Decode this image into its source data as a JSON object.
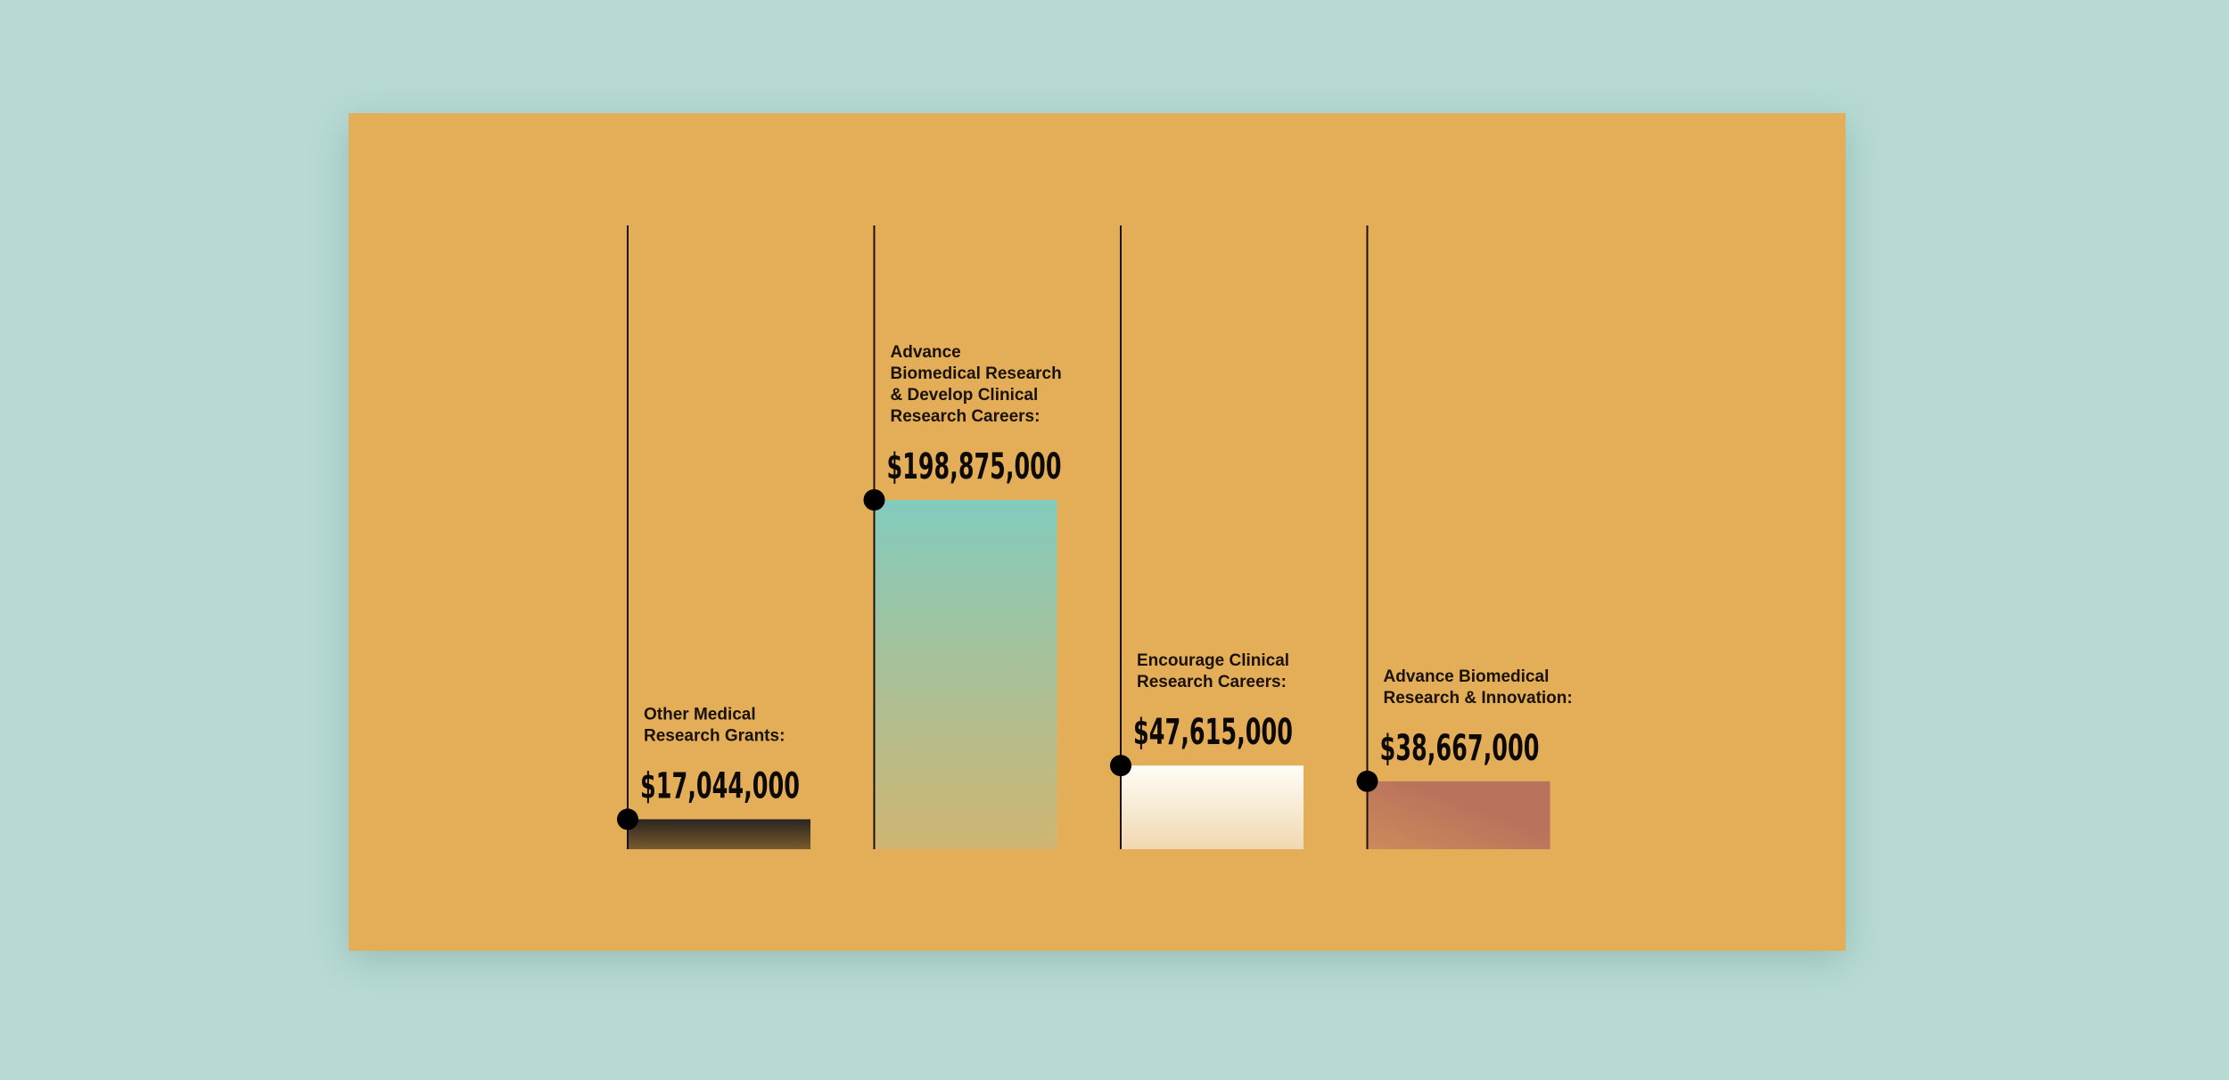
{
  "chart_data": {
    "type": "bar",
    "categories": [
      "Other Medical Research Grants:",
      "Advance Biomedical Research & Develop Clinical Research Careers:",
      "Encourage Clinical Research Careers:",
      "Advance Biomedical Research & Innovation:"
    ],
    "category_lines": [
      [
        "Other Medical",
        "Research Grants:"
      ],
      [
        "Advance",
        "Biomedical Research",
        "& Develop Clinical",
        "Research Careers:"
      ],
      [
        "Encourage Clinical",
        "Research Careers:"
      ],
      [
        "Advance Biomedical",
        "Research & Innovation:"
      ]
    ],
    "values": [
      17044000,
      198875000,
      47615000,
      38667000
    ],
    "value_labels": [
      "$17,044,000",
      "$198,875,000",
      "$47,615,000",
      "$38,667,000"
    ],
    "bar_gradients": [
      [
        "#2a2520",
        "#7a5a2e"
      ],
      [
        "#82cbbd",
        "#cfb572"
      ],
      [
        "#fffdf6",
        "#f1d8b2"
      ],
      [
        "#b9735c",
        "#cd8a5a"
      ]
    ],
    "title": "",
    "xlabel": "",
    "ylabel": "",
    "ylim": [
      0,
      198875000
    ],
    "grid": false,
    "legend": "none"
  },
  "colors": {
    "page_background": "#b7dbd4",
    "card_background": "#e4ae59",
    "stem_line": "#1a1208",
    "marker": "#000000"
  }
}
